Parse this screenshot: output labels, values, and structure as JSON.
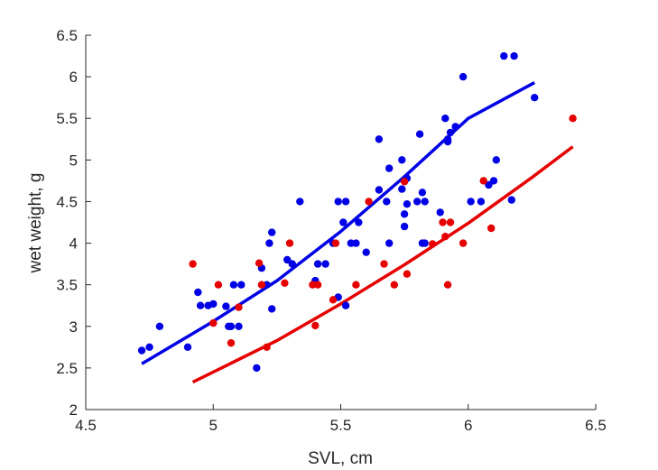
{
  "chart_data": {
    "type": "scatter",
    "title": "",
    "xlabel": "SVL, cm",
    "ylabel": "wet weight, g",
    "xlim": [
      4.5,
      6.5
    ],
    "ylim": [
      2,
      6.5
    ],
    "xticks": [
      "4.5",
      "5",
      "5.5",
      "6",
      "6.5"
    ],
    "yticks": [
      "2",
      "2.5",
      "3",
      "3.5",
      "4",
      "4.5",
      "5",
      "5.5",
      "6",
      "6.5"
    ],
    "grid": false,
    "legend": "none",
    "series": [
      {
        "color": "#0000e6",
        "points": [
          [
            4.72,
            2.71
          ],
          [
            4.75,
            2.75
          ],
          [
            4.79,
            3.0
          ],
          [
            4.9,
            2.75
          ],
          [
            4.94,
            3.41
          ],
          [
            4.95,
            3.25
          ],
          [
            4.98,
            3.25
          ],
          [
            5.0,
            3.27
          ],
          [
            5.05,
            3.24
          ],
          [
            5.06,
            3.0
          ],
          [
            5.07,
            3.0
          ],
          [
            5.08,
            3.5
          ],
          [
            5.1,
            3.0
          ],
          [
            5.11,
            3.5
          ],
          [
            5.17,
            2.5
          ],
          [
            5.19,
            3.7
          ],
          [
            5.21,
            3.5
          ],
          [
            5.22,
            4.0
          ],
          [
            5.23,
            3.21
          ],
          [
            5.23,
            4.13
          ],
          [
            5.29,
            3.8
          ],
          [
            5.31,
            3.75
          ],
          [
            5.34,
            4.5
          ],
          [
            5.4,
            3.55
          ],
          [
            5.41,
            3.75
          ],
          [
            5.44,
            3.75
          ],
          [
            5.47,
            4.0
          ],
          [
            5.49,
            3.35
          ],
          [
            5.49,
            4.5
          ],
          [
            5.51,
            4.25
          ],
          [
            5.52,
            3.25
          ],
          [
            5.52,
            4.5
          ],
          [
            5.54,
            4.0
          ],
          [
            5.56,
            4.0
          ],
          [
            5.57,
            4.25
          ],
          [
            5.6,
            3.89
          ],
          [
            5.65,
            4.64
          ],
          [
            5.65,
            5.25
          ],
          [
            5.68,
            4.5
          ],
          [
            5.69,
            4.9
          ],
          [
            5.69,
            4.0
          ],
          [
            5.74,
            5.0
          ],
          [
            5.74,
            4.65
          ],
          [
            5.75,
            4.35
          ],
          [
            5.75,
            4.2
          ],
          [
            5.76,
            4.78
          ],
          [
            5.76,
            4.47
          ],
          [
            5.8,
            4.5
          ],
          [
            5.81,
            5.31
          ],
          [
            5.82,
            4.61
          ],
          [
            5.82,
            4.0
          ],
          [
            5.83,
            4.5
          ],
          [
            5.83,
            4.0
          ],
          [
            5.89,
            4.37
          ],
          [
            5.91,
            5.5
          ],
          [
            5.92,
            5.25
          ],
          [
            5.92,
            5.22
          ],
          [
            5.93,
            5.33
          ],
          [
            5.95,
            5.4
          ],
          [
            5.98,
            6.0
          ],
          [
            6.01,
            4.5
          ],
          [
            6.05,
            4.5
          ],
          [
            6.08,
            4.7
          ],
          [
            6.1,
            4.75
          ],
          [
            6.11,
            5.0
          ],
          [
            6.14,
            6.25
          ],
          [
            6.17,
            4.52
          ],
          [
            6.18,
            6.25
          ],
          [
            6.26,
            5.75
          ]
        ],
        "fit": [
          [
            4.72,
            2.55
          ],
          [
            5.0,
            3.06
          ],
          [
            5.25,
            3.55
          ],
          [
            5.5,
            4.14
          ],
          [
            5.75,
            4.8
          ],
          [
            6.0,
            5.5
          ],
          [
            6.26,
            5.93
          ]
        ]
      },
      {
        "color": "#e60000",
        "points": [
          [
            4.92,
            3.75
          ],
          [
            5.0,
            3.04
          ],
          [
            5.02,
            3.5
          ],
          [
            5.07,
            2.8
          ],
          [
            5.1,
            3.23
          ],
          [
            5.18,
            3.76
          ],
          [
            5.19,
            3.5
          ],
          [
            5.21,
            2.75
          ],
          [
            5.28,
            3.52
          ],
          [
            5.3,
            4.0
          ],
          [
            5.39,
            3.5
          ],
          [
            5.4,
            3.01
          ],
          [
            5.41,
            3.5
          ],
          [
            5.47,
            3.32
          ],
          [
            5.48,
            4.0
          ],
          [
            5.56,
            3.5
          ],
          [
            5.61,
            4.5
          ],
          [
            5.67,
            3.75
          ],
          [
            5.71,
            3.5
          ],
          [
            5.75,
            4.74
          ],
          [
            5.76,
            3.63
          ],
          [
            5.86,
            3.99
          ],
          [
            5.9,
            4.25
          ],
          [
            5.91,
            4.08
          ],
          [
            5.92,
            3.5
          ],
          [
            5.93,
            4.25
          ],
          [
            5.98,
            4.0
          ],
          [
            6.06,
            4.75
          ],
          [
            6.09,
            4.18
          ],
          [
            6.41,
            5.5
          ]
        ],
        "fit": [
          [
            4.92,
            2.33
          ],
          [
            5.25,
            2.83
          ],
          [
            5.5,
            3.27
          ],
          [
            5.75,
            3.74
          ],
          [
            6.0,
            4.24
          ],
          [
            6.25,
            4.79
          ],
          [
            6.41,
            5.16
          ]
        ]
      }
    ]
  }
}
